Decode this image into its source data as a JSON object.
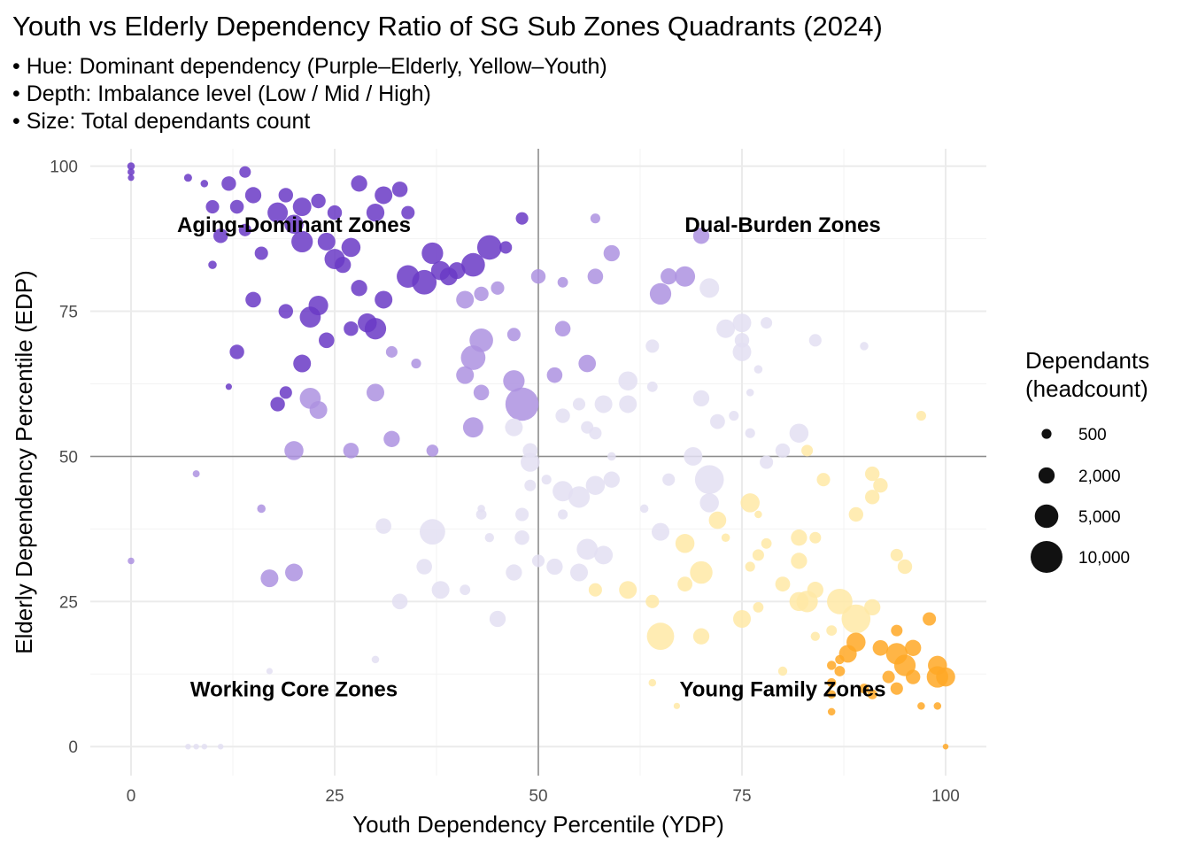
{
  "title": "Youth vs Elderly Dependency Ratio of SG Sub Zones Quadrants (2024)",
  "subtitle_lines": [
    "• Hue: Dominant dependency (Purple–Elderly, Yellow–Youth)",
    "• Depth: Imbalance level (Low / Mid / High)",
    "• Size: Total dependants count"
  ],
  "chart_data": {
    "type": "scatter",
    "xlabel": "Youth Dependency Percentile (YDP)",
    "ylabel": "Elderly Dependency Percentile (EDP)",
    "xlim": [
      -5,
      105
    ],
    "ylim": [
      -5,
      103
    ],
    "x_ticks": [
      0,
      25,
      50,
      75,
      100
    ],
    "y_ticks": [
      0,
      25,
      50,
      75,
      100
    ],
    "reference_lines": {
      "x": 50,
      "y": 50
    },
    "grid": true,
    "quadrant_labels": [
      {
        "text": "Aging-Dominant Zones",
        "x": 20,
        "y": 90
      },
      {
        "text": "Dual-Burden Zones",
        "x": 80,
        "y": 90
      },
      {
        "text": "Working Core Zones",
        "x": 20,
        "y": 10
      },
      {
        "text": "Young Family Zones",
        "x": 80,
        "y": 10
      }
    ],
    "colors": {
      "elderly_high": "#6a3ac6",
      "elderly_mid": "#ad92e0",
      "low": "#e3dff2",
      "youth_mid": "#ffe9a6",
      "youth_high": "#ffa826"
    },
    "legend": {
      "title_lines": [
        "Dependants",
        "(headcount)"
      ],
      "placement": "right",
      "entries": [
        {
          "label": "500",
          "value": 500
        },
        {
          "label": "2,000",
          "value": 2000
        },
        {
          "label": "5,000",
          "value": 5000
        },
        {
          "label": "10,000",
          "value": 10000
        }
      ]
    },
    "points": [
      [
        0,
        100,
        200
      ],
      [
        0,
        99,
        150
      ],
      [
        0,
        98,
        100
      ],
      [
        7,
        98,
        250
      ],
      [
        9,
        97,
        200
      ],
      [
        12,
        97,
        1500
      ],
      [
        14,
        99,
        800
      ],
      [
        15,
        95,
        2000
      ],
      [
        10,
        93,
        1200
      ],
      [
        13,
        93,
        1300
      ],
      [
        11,
        88,
        1500
      ],
      [
        19,
        95,
        1500
      ],
      [
        21,
        93,
        2800
      ],
      [
        18,
        92,
        3500
      ],
      [
        23,
        94,
        1500
      ],
      [
        20,
        90,
        3000
      ],
      [
        21,
        87,
        4000
      ],
      [
        25,
        92,
        1500
      ],
      [
        28,
        97,
        2000
      ],
      [
        31,
        95,
        2500
      ],
      [
        33,
        96,
        1800
      ],
      [
        30,
        92,
        2600
      ],
      [
        34,
        92,
        1200
      ],
      [
        24,
        87,
        2500
      ],
      [
        27,
        86,
        3000
      ],
      [
        25,
        84,
        3500
      ],
      [
        26,
        83,
        2000
      ],
      [
        16,
        85,
        1200
      ],
      [
        14,
        89,
        1000
      ],
      [
        10,
        83,
        300
      ],
      [
        15,
        77,
        1800
      ],
      [
        19,
        75,
        1500
      ],
      [
        23,
        76,
        3200
      ],
      [
        22,
        74,
        3800
      ],
      [
        28,
        79,
        2000
      ],
      [
        31,
        77,
        2500
      ],
      [
        37,
        85,
        4000
      ],
      [
        36,
        80,
        5500
      ],
      [
        34,
        81,
        4500
      ],
      [
        38,
        82,
        3000
      ],
      [
        39,
        81,
        2500
      ],
      [
        40,
        82,
        2200
      ],
      [
        44,
        86,
        5500
      ],
      [
        46,
        86,
        1000
      ],
      [
        48,
        91,
        1000
      ],
      [
        57,
        91,
        500
      ],
      [
        13,
        68,
        1500
      ],
      [
        12,
        62,
        100
      ],
      [
        21,
        66,
        2500
      ],
      [
        8,
        47,
        150
      ],
      [
        0,
        32,
        120
      ],
      [
        16,
        41,
        300
      ],
      [
        30,
        72,
        4000
      ],
      [
        32,
        68,
        800
      ],
      [
        35,
        66,
        500
      ],
      [
        27,
        72,
        1500
      ],
      [
        29,
        73,
        3000
      ],
      [
        22,
        60,
        3800
      ],
      [
        23,
        58,
        2500
      ],
      [
        19,
        61,
        1000
      ],
      [
        18,
        59,
        1500
      ],
      [
        20,
        51,
        3000
      ],
      [
        27,
        51,
        1800
      ],
      [
        32,
        53,
        2000
      ],
      [
        30,
        61,
        2500
      ],
      [
        24,
        70,
        1800
      ],
      [
        42,
        83,
        5000
      ],
      [
        41,
        77,
        2500
      ],
      [
        43,
        78,
        1500
      ],
      [
        45,
        79,
        1200
      ],
      [
        42,
        67,
        5500
      ],
      [
        41,
        64,
        2500
      ],
      [
        43,
        70,
        5000
      ],
      [
        43,
        61,
        1800
      ],
      [
        42,
        55,
        3500
      ],
      [
        47,
        63,
        4000
      ],
      [
        48,
        59,
        11000
      ],
      [
        47,
        55,
        2500
      ],
      [
        49,
        51,
        1600
      ],
      [
        47,
        71,
        1200
      ],
      [
        50,
        81,
        1500
      ],
      [
        53,
        80,
        600
      ],
      [
        57,
        81,
        1800
      ],
      [
        59,
        85,
        2000
      ],
      [
        53,
        72,
        1800
      ],
      [
        56,
        66,
        2400
      ],
      [
        52,
        64,
        1800
      ],
      [
        55,
        59,
        1000
      ],
      [
        53,
        57,
        1500
      ],
      [
        56,
        55,
        1000
      ],
      [
        57,
        54,
        1000
      ],
      [
        58,
        59,
        2500
      ],
      [
        61,
        63,
        3000
      ],
      [
        61,
        59,
        2500
      ],
      [
        64,
        69,
        1200
      ],
      [
        64,
        62,
        600
      ],
      [
        65,
        78,
        4000
      ],
      [
        66,
        81,
        2000
      ],
      [
        68,
        81,
        3500
      ],
      [
        70,
        88,
        2000
      ],
      [
        71,
        79,
        3200
      ],
      [
        73,
        72,
        2800
      ],
      [
        75,
        73,
        2800
      ],
      [
        75,
        70,
        1500
      ],
      [
        78,
        73,
        800
      ],
      [
        75,
        68,
        2800
      ],
      [
        70,
        60,
        2000
      ],
      [
        72,
        56,
        1600
      ],
      [
        37,
        51,
        900
      ],
      [
        44,
        36,
        400
      ],
      [
        43,
        41,
        200
      ],
      [
        49,
        49,
        3000
      ],
      [
        49,
        45,
        800
      ],
      [
        53,
        44,
        3500
      ],
      [
        55,
        43,
        4000
      ],
      [
        57,
        45,
        3000
      ],
      [
        59,
        46,
        2000
      ],
      [
        59,
        50,
        300
      ],
      [
        51,
        46,
        500
      ],
      [
        53,
        40,
        500
      ],
      [
        56,
        34,
        3800
      ],
      [
        55,
        30,
        2500
      ],
      [
        58,
        33,
        2800
      ],
      [
        52,
        31,
        2000
      ],
      [
        50,
        32,
        1000
      ],
      [
        48,
        36,
        1500
      ],
      [
        48,
        40,
        1200
      ],
      [
        47,
        30,
        2000
      ],
      [
        43,
        40,
        600
      ],
      [
        37,
        37,
        6000
      ],
      [
        36,
        31,
        1800
      ],
      [
        38,
        27,
        2500
      ],
      [
        41,
        27,
        600
      ],
      [
        33,
        25,
        1800
      ],
      [
        31,
        38,
        1800
      ],
      [
        20,
        30,
        2500
      ],
      [
        17,
        29,
        2500
      ],
      [
        66,
        46,
        1000
      ],
      [
        69,
        50,
        2800
      ],
      [
        65,
        37,
        2500
      ],
      [
        68,
        35,
        3000
      ],
      [
        71,
        42,
        3000
      ],
      [
        71,
        46,
        8000
      ],
      [
        72,
        39,
        2400
      ],
      [
        76,
        42,
        3000
      ],
      [
        78,
        49,
        1200
      ],
      [
        80,
        51,
        1500
      ],
      [
        82,
        54,
        3000
      ],
      [
        83,
        51,
        800
      ],
      [
        84,
        70,
        1000
      ],
      [
        90,
        69,
        300
      ],
      [
        74,
        57,
        500
      ],
      [
        76,
        54,
        500
      ],
      [
        63,
        41,
        300
      ],
      [
        73,
        36,
        300
      ],
      [
        77,
        40,
        200
      ],
      [
        76,
        61,
        200
      ],
      [
        77,
        65,
        300
      ],
      [
        85,
        46,
        1200
      ],
      [
        91,
        47,
        1500
      ],
      [
        92,
        45,
        1500
      ],
      [
        91,
        43,
        1500
      ],
      [
        89,
        40,
        1500
      ],
      [
        84,
        36,
        800
      ],
      [
        82,
        36,
        2000
      ],
      [
        82,
        32,
        2000
      ],
      [
        80,
        28,
        1600
      ],
      [
        82,
        25,
        3000
      ],
      [
        83,
        25,
        4000
      ],
      [
        84,
        27,
        2000
      ],
      [
        77,
        33,
        800
      ],
      [
        76,
        31,
        500
      ],
      [
        78,
        35,
        600
      ],
      [
        70,
        30,
        4500
      ],
      [
        68,
        28,
        1600
      ],
      [
        61,
        27,
        2500
      ],
      [
        65,
        19,
        7000
      ],
      [
        64,
        25,
        1200
      ],
      [
        75,
        22,
        2500
      ],
      [
        77,
        24,
        600
      ],
      [
        57,
        27,
        1200
      ],
      [
        45,
        22,
        2000
      ],
      [
        17,
        13,
        100
      ],
      [
        30,
        15,
        200
      ],
      [
        94,
        33,
        1000
      ],
      [
        97,
        57,
        500
      ],
      [
        70,
        19,
        2000
      ],
      [
        84,
        19,
        400
      ],
      [
        86,
        20,
        600
      ],
      [
        87,
        25,
        6000
      ],
      [
        89,
        22,
        8000
      ],
      [
        88,
        16,
        2500
      ],
      [
        89,
        18,
        3000
      ],
      [
        91,
        24,
        2000
      ],
      [
        92,
        17,
        1800
      ],
      [
        94,
        20,
        800
      ],
      [
        95,
        31,
        1500
      ],
      [
        98,
        22,
        1200
      ],
      [
        96,
        17,
        2000
      ],
      [
        95,
        14,
        4000
      ],
      [
        94,
        16,
        4000
      ],
      [
        96,
        12,
        1500
      ],
      [
        99,
        14,
        3000
      ],
      [
        100,
        12,
        3000
      ],
      [
        99,
        12,
        4000
      ],
      [
        94,
        10,
        1000
      ],
      [
        93,
        12,
        1000
      ],
      [
        90,
        10,
        500
      ],
      [
        91,
        9,
        500
      ],
      [
        87,
        13,
        600
      ],
      [
        87,
        15,
        400
      ],
      [
        86,
        14,
        400
      ],
      [
        86,
        11,
        400
      ],
      [
        86,
        9,
        300
      ],
      [
        86,
        6,
        200
      ],
      [
        80,
        13,
        400
      ],
      [
        64,
        11,
        200
      ],
      [
        67,
        7,
        100
      ],
      [
        97,
        7,
        200
      ],
      [
        99,
        7,
        200
      ],
      [
        7,
        0,
        60
      ],
      [
        8,
        0,
        60
      ],
      [
        9,
        0,
        60
      ],
      [
        11,
        0,
        60
      ],
      [
        100,
        0,
        60
      ]
    ]
  }
}
